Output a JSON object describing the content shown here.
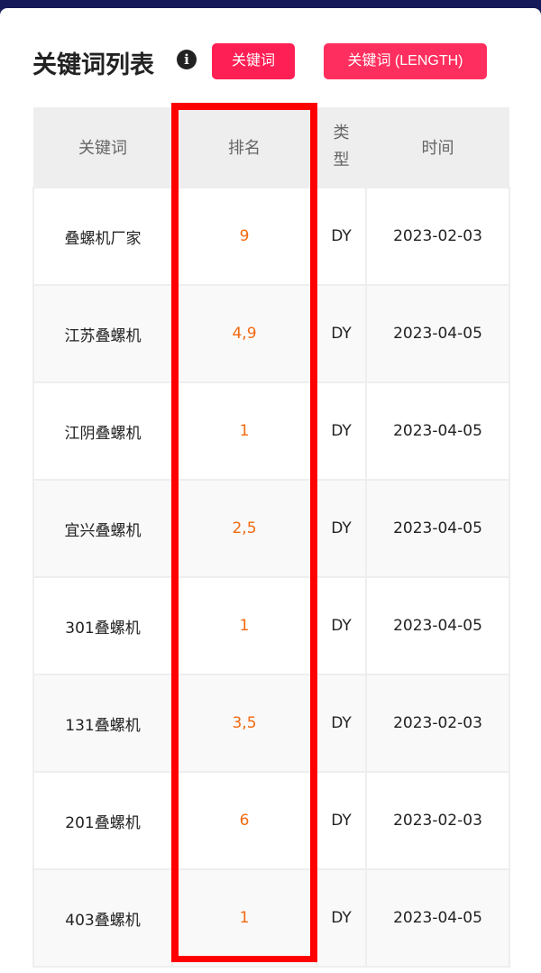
{
  "header": {
    "title": "关键词列表",
    "info_icon": "info-circle-icon",
    "buttons": [
      "关键词",
      "关键词 (LENGTH)"
    ]
  },
  "colors": {
    "button": "#fe1f54",
    "rank_text": "#f26a10",
    "highlight_box": "#ff0000"
  },
  "table": {
    "columns": [
      "关键词",
      "排名",
      "类型",
      "时间"
    ],
    "rows": [
      [
        "叠螺机厂家",
        "9",
        "DY",
        "2023-02-03"
      ],
      [
        "江苏叠螺机",
        "4,9",
        "DY",
        "2023-04-05"
      ],
      [
        "江阴叠螺机",
        "1",
        "DY",
        "2023-04-05"
      ],
      [
        "宜兴叠螺机",
        "2,5",
        "DY",
        "2023-04-05"
      ],
      [
        "301叠螺机",
        "1",
        "DY",
        "2023-04-05"
      ],
      [
        "131叠螺机",
        "3,5",
        "DY",
        "2023-02-03"
      ],
      [
        "201叠螺机",
        "6",
        "DY",
        "2023-02-03"
      ],
      [
        "403叠螺机",
        "1",
        "DY",
        "2023-04-05"
      ]
    ]
  }
}
